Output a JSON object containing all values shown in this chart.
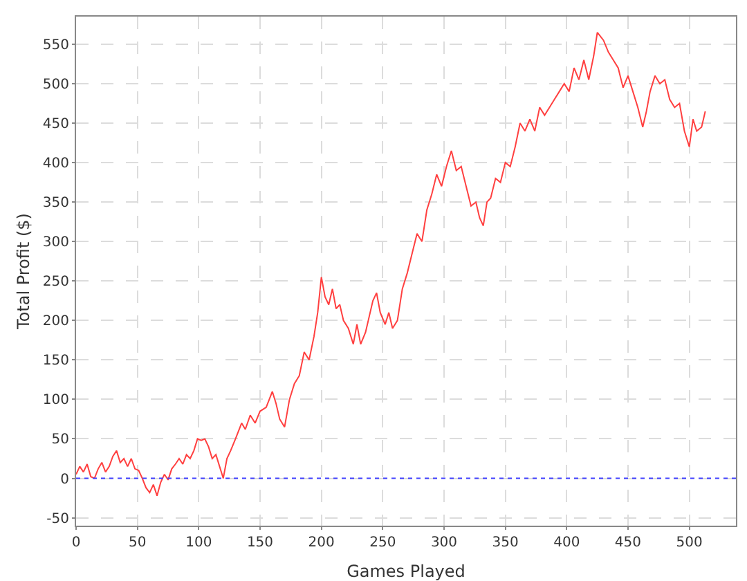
{
  "chart_data": {
    "type": "line",
    "xlabel": "Games Played",
    "ylabel": "Total Profit ($)",
    "xlim": [
      0,
      538
    ],
    "xticks": [
      0,
      50,
      100,
      150,
      200,
      250,
      300,
      350,
      400,
      450,
      500
    ],
    "ylim": [
      -60,
      585
    ],
    "yticks": [
      -50,
      0,
      50,
      100,
      150,
      200,
      250,
      300,
      350,
      400,
      450,
      500,
      550
    ],
    "grid": true,
    "marker": "none",
    "line_style": "solid",
    "ref_lines": [
      {
        "axis": "y",
        "value": 0,
        "color": "#4040ff",
        "line_style": "dotted"
      }
    ],
    "series": [
      {
        "color": "#ff4040",
        "x": [
          0,
          3,
          6,
          9,
          12,
          15,
          18,
          21,
          24,
          27,
          30,
          33,
          36,
          39,
          42,
          45,
          48,
          51,
          54,
          57,
          60,
          63,
          66,
          69,
          72,
          75,
          78,
          81,
          84,
          87,
          90,
          93,
          96,
          99,
          102,
          105,
          108,
          111,
          114,
          117,
          120,
          123,
          126,
          130,
          135,
          138,
          142,
          146,
          150,
          155,
          160,
          163,
          166,
          170,
          174,
          178,
          182,
          186,
          190,
          194,
          197,
          200,
          203,
          206,
          209,
          212,
          215,
          218,
          222,
          226,
          229,
          232,
          236,
          239,
          242,
          245,
          248,
          252,
          255,
          258,
          262,
          266,
          270,
          274,
          278,
          282,
          286,
          290,
          294,
          298,
          302,
          306,
          310,
          314,
          318,
          322,
          326,
          329,
          332,
          335,
          338,
          342,
          346,
          350,
          354,
          358,
          362,
          366,
          370,
          374,
          378,
          382,
          386,
          390,
          394,
          398,
          402,
          406,
          410,
          414,
          418,
          422,
          425,
          430,
          434,
          438,
          442,
          446,
          450,
          454,
          458,
          462,
          465,
          468,
          472,
          476,
          480,
          484,
          488,
          492,
          496,
          500,
          503,
          506,
          510,
          513
        ],
        "values": [
          5,
          15,
          8,
          18,
          2,
          0,
          12,
          20,
          8,
          15,
          28,
          35,
          20,
          25,
          15,
          25,
          12,
          10,
          0,
          -12,
          -18,
          -8,
          -22,
          -5,
          5,
          -2,
          12,
          18,
          25,
          18,
          30,
          25,
          35,
          50,
          48,
          50,
          40,
          25,
          30,
          15,
          0,
          25,
          35,
          50,
          70,
          62,
          80,
          70,
          85,
          90,
          110,
          95,
          75,
          65,
          100,
          120,
          130,
          160,
          150,
          180,
          210,
          255,
          230,
          220,
          240,
          215,
          220,
          200,
          190,
          170,
          195,
          170,
          185,
          205,
          225,
          235,
          210,
          195,
          210,
          190,
          200,
          240,
          260,
          285,
          310,
          300,
          340,
          360,
          385,
          370,
          395,
          415,
          390,
          395,
          370,
          345,
          350,
          330,
          320,
          350,
          355,
          380,
          375,
          400,
          395,
          420,
          450,
          440,
          455,
          440,
          470,
          460,
          470,
          480,
          490,
          500,
          490,
          520,
          505,
          530,
          505,
          535,
          565,
          555,
          540,
          530,
          520,
          495,
          510,
          490,
          470,
          445,
          465,
          490,
          510,
          500,
          505,
          480,
          470,
          475,
          440,
          420,
          455,
          440,
          445,
          465
        ]
      }
    ]
  }
}
